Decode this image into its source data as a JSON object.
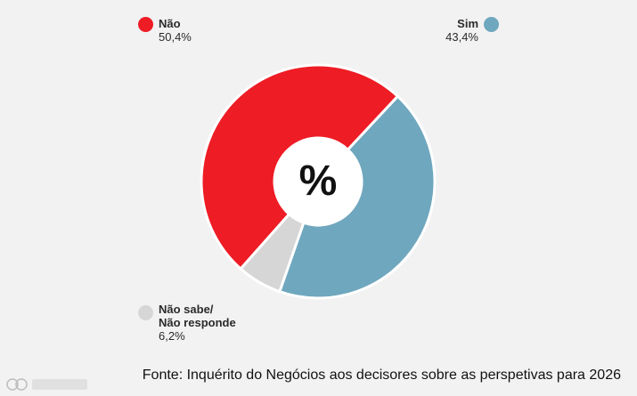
{
  "chart_data": {
    "type": "pie",
    "variant": "donut",
    "center_symbol": "%",
    "series": [
      {
        "name": "Não",
        "label": "Não",
        "value": 50.4,
        "value_text": "50,4%",
        "color": "#ee1c25"
      },
      {
        "name": "Sim",
        "label": "Sim",
        "value": 43.4,
        "value_text": "43,4%",
        "color": "#6fa7be"
      },
      {
        "name": "Não sabe/ Não responde",
        "label": "Não sabe/\nNão responde",
        "value": 6.2,
        "value_text": "6,2%",
        "color": "#d6d6d6"
      }
    ]
  },
  "source": "Fonte: Inquérito do Negócios aos decisores sobre as perspetivas para 2026",
  "colors": {
    "background": "#f2f2f2",
    "separator": "#ffffff",
    "text": "#111111"
  }
}
